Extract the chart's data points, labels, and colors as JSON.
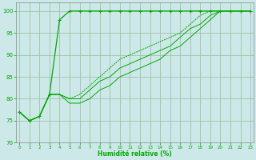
{
  "title": "",
  "xlabel": "Humidité relative (%)",
  "ylabel": "",
  "xlim": [
    -0.3,
    23.3
  ],
  "ylim": [
    70,
    102
  ],
  "yticks": [
    70,
    75,
    80,
    85,
    90,
    95,
    100
  ],
  "xticks": [
    0,
    1,
    2,
    3,
    4,
    5,
    6,
    7,
    8,
    9,
    10,
    11,
    12,
    13,
    14,
    15,
    16,
    17,
    18,
    19,
    20,
    21,
    22,
    23
  ],
  "background_color": "#cce8e8",
  "line_color": "#00aa00",
  "grid_color": "#99bb99",
  "line1_x": [
    0,
    1,
    2,
    3,
    4,
    5,
    6,
    7,
    8,
    9,
    10,
    11,
    12,
    13,
    14,
    15,
    16,
    17,
    18,
    19,
    20,
    21,
    22,
    23
  ],
  "line1_y": [
    77,
    75,
    76,
    81,
    98,
    100,
    100,
    100,
    100,
    100,
    100,
    100,
    100,
    100,
    100,
    100,
    100,
    100,
    100,
    100,
    100,
    100,
    100,
    100
  ],
  "line2_x": [
    0,
    1,
    2,
    3,
    4,
    5,
    6,
    7,
    8,
    9,
    10,
    11,
    12,
    13,
    14,
    15,
    16,
    17,
    18,
    19,
    20,
    21,
    22,
    23
  ],
  "line2_y": [
    77,
    75,
    76,
    81,
    81,
    80,
    81,
    83,
    85,
    87,
    89,
    90,
    91,
    92,
    93,
    94,
    95,
    97,
    99,
    100,
    100,
    100,
    100,
    100
  ],
  "line3_x": [
    0,
    1,
    2,
    3,
    4,
    5,
    6,
    7,
    8,
    9,
    10,
    11,
    12,
    13,
    14,
    15,
    16,
    17,
    18,
    19,
    20,
    21,
    22,
    23
  ],
  "line3_y": [
    77,
    75,
    76,
    81,
    81,
    80,
    80,
    82,
    84,
    85,
    87,
    88,
    89,
    90,
    91,
    92,
    94,
    96,
    97,
    99,
    100,
    100,
    100,
    100
  ],
  "line4_x": [
    0,
    1,
    2,
    3,
    4,
    5,
    6,
    7,
    8,
    9,
    10,
    11,
    12,
    13,
    14,
    15,
    16,
    17,
    18,
    19,
    20,
    21,
    22,
    23
  ],
  "line4_y": [
    77,
    75,
    76,
    81,
    81,
    79,
    79,
    80,
    82,
    83,
    85,
    86,
    87,
    88,
    89,
    91,
    92,
    94,
    96,
    98,
    100,
    100,
    100,
    100
  ]
}
